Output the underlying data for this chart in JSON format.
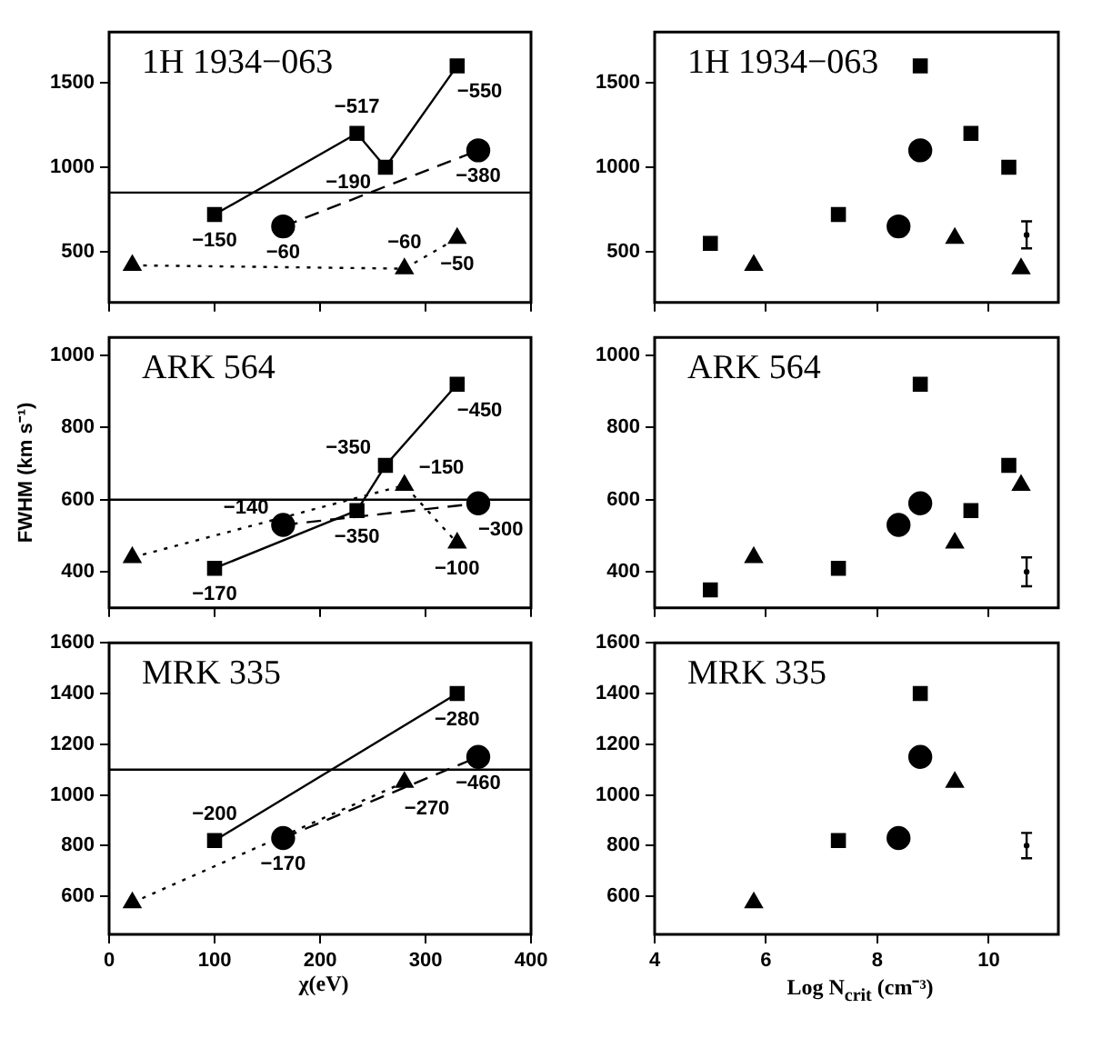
{
  "chart_data": [
    {
      "type": "line",
      "title": "1H 1934−063",
      "xlim": [
        0,
        400
      ],
      "xticks": [
        0,
        100,
        200,
        300,
        400
      ],
      "ylim": [
        200,
        1800
      ],
      "yticks": [
        500,
        1000,
        1500
      ],
      "tick_labels": "y",
      "grid": false,
      "legend": false,
      "series": [
        {
          "marker": "square",
          "line_style": "solid",
          "color": "#000000",
          "x": [
            100,
            235,
            262,
            330
          ],
          "values": [
            720,
            1200,
            1000,
            1600
          ]
        },
        {
          "marker": "circle",
          "line_style": "dashed",
          "color": "#000000",
          "x": [
            165,
            350
          ],
          "values": [
            650,
            1100
          ]
        },
        {
          "marker": "triangle",
          "line_style": "dotted",
          "color": "#000000",
          "x": [
            22,
            280,
            330
          ],
          "values": [
            420,
            400,
            580
          ]
        }
      ],
      "ref_lines": [
        {
          "axis": "y",
          "value": 850
        }
      ],
      "annotations": [
        {
          "text": "−150",
          "x": 100,
          "y": 720
        },
        {
          "text": "−517",
          "x": 235,
          "y": 1200
        },
        {
          "text": "−190",
          "x": 262,
          "y": 1000
        },
        {
          "text": "−550",
          "x": 330,
          "y": 1600
        },
        {
          "text": "−60",
          "x": 165,
          "y": 650
        },
        {
          "text": "−380",
          "x": 350,
          "y": 1100
        },
        {
          "text": "−60",
          "x": 280,
          "y": 400
        },
        {
          "text": "−50",
          "x": 330,
          "y": 580
        }
      ]
    },
    {
      "type": "scatter",
      "title": "1H 1934−063",
      "xlim": [
        4,
        11.25
      ],
      "xticks": [
        4,
        6,
        8,
        10
      ],
      "ylim": [
        200,
        1800
      ],
      "yticks": [
        500,
        1000,
        1500
      ],
      "tick_labels": "y",
      "grid": false,
      "legend": false,
      "series": [
        {
          "marker": "square",
          "color": "#000000",
          "x": [
            5.0,
            7.3,
            8.77,
            9.68,
            10.36
          ],
          "values": [
            550,
            720,
            1600,
            1200,
            1000
          ]
        },
        {
          "marker": "circle",
          "color": "#000000",
          "x": [
            8.38,
            8.77
          ],
          "values": [
            650,
            1100
          ]
        },
        {
          "marker": "triangle",
          "color": "#000000",
          "x": [
            5.78,
            9.39,
            10.58
          ],
          "values": [
            420,
            580,
            400
          ]
        },
        {
          "color": "#000000",
          "x": [
            10.68
          ],
          "values": [
            600
          ],
          "errors": [
            80
          ]
        }
      ]
    },
    {
      "type": "line",
      "title": "ARK 564",
      "ylabel": "FWHM (km s⁻¹)",
      "xlim": [
        0,
        400
      ],
      "xticks": [
        0,
        100,
        200,
        300,
        400
      ],
      "ylim": [
        300,
        1050
      ],
      "yticks": [
        400,
        600,
        800,
        1000
      ],
      "tick_labels": "y",
      "grid": false,
      "legend": false,
      "series": [
        {
          "marker": "square",
          "line_style": "solid",
          "color": "#000000",
          "x": [
            100,
            235,
            262,
            330
          ],
          "values": [
            410,
            570,
            695,
            920
          ]
        },
        {
          "marker": "circle",
          "line_style": "dashed",
          "color": "#000000",
          "x": [
            165,
            350
          ],
          "values": [
            530,
            590
          ]
        },
        {
          "marker": "triangle",
          "line_style": "dotted",
          "color": "#000000",
          "x": [
            22,
            280,
            330
          ],
          "values": [
            440,
            640,
            480
          ]
        }
      ],
      "ref_lines": [
        {
          "axis": "y",
          "value": 600
        }
      ],
      "annotations": [
        {
          "text": "−170",
          "x": 100,
          "y": 410
        },
        {
          "text": "−350",
          "x": 235,
          "y": 570
        },
        {
          "text": "−350",
          "x": 262,
          "y": 695
        },
        {
          "text": "−450",
          "x": 330,
          "y": 920
        },
        {
          "text": "−140",
          "x": 165,
          "y": 530
        },
        {
          "text": "−300",
          "x": 350,
          "y": 590
        },
        {
          "text": "−150",
          "x": 280,
          "y": 640
        },
        {
          "text": "−100",
          "x": 330,
          "y": 480
        }
      ]
    },
    {
      "type": "scatter",
      "title": "ARK 564",
      "xlim": [
        4,
        11.25
      ],
      "xticks": [
        4,
        6,
        8,
        10
      ],
      "ylim": [
        300,
        1050
      ],
      "yticks": [
        400,
        600,
        800,
        1000
      ],
      "tick_labels": "y",
      "grid": false,
      "legend": false,
      "series": [
        {
          "marker": "square",
          "color": "#000000",
          "x": [
            5.0,
            7.3,
            8.77,
            9.68,
            10.36
          ],
          "values": [
            350,
            410,
            920,
            570,
            695
          ]
        },
        {
          "marker": "circle",
          "color": "#000000",
          "x": [
            8.38,
            8.77
          ],
          "values": [
            530,
            590
          ]
        },
        {
          "marker": "triangle",
          "color": "#000000",
          "x": [
            5.78,
            9.39,
            10.58
          ],
          "values": [
            440,
            480,
            640
          ]
        },
        {
          "color": "#000000",
          "x": [
            10.68
          ],
          "values": [
            400
          ],
          "errors": [
            40
          ]
        }
      ]
    },
    {
      "type": "line",
      "title": "MRK 335",
      "xlabel": "χ(eV)",
      "xlim": [
        0,
        400
      ],
      "xticks": [
        0,
        100,
        200,
        300,
        400
      ],
      "ylim": [
        450,
        1600
      ],
      "yticks": [
        600,
        800,
        1000,
        1200,
        1400,
        1600
      ],
      "grid": false,
      "legend": false,
      "series": [
        {
          "marker": "square",
          "line_style": "solid",
          "color": "#000000",
          "x": [
            100,
            330
          ],
          "values": [
            820,
            1400
          ]
        },
        {
          "marker": "circle",
          "line_style": "dashed",
          "color": "#000000",
          "x": [
            165,
            350
          ],
          "values": [
            830,
            1150
          ]
        },
        {
          "marker": "triangle",
          "line_style": "dotted",
          "color": "#000000",
          "x": [
            22,
            280
          ],
          "values": [
            575,
            1050
          ]
        }
      ],
      "ref_lines": [
        {
          "axis": "y",
          "value": 1100
        }
      ],
      "annotations": [
        {
          "text": "−200",
          "x": 100,
          "y": 820
        },
        {
          "text": "−280",
          "x": 330,
          "y": 1400
        },
        {
          "text": "−170",
          "x": 165,
          "y": 830
        },
        {
          "text": "−460",
          "x": 350,
          "y": 1150
        },
        {
          "text": "−270",
          "x": 280,
          "y": 1050
        }
      ]
    },
    {
      "type": "scatter",
      "title": "MRK 335",
      "xlabel": "Log N$_{crit}$ (cm⁻³)",
      "xlim": [
        4,
        11.25
      ],
      "xticks": [
        4,
        6,
        8,
        10
      ],
      "ylim": [
        450,
        1600
      ],
      "yticks": [
        600,
        800,
        1000,
        1200,
        1400,
        1600
      ],
      "grid": false,
      "legend": false,
      "series": [
        {
          "marker": "square",
          "color": "#000000",
          "x": [
            7.3,
            8.77
          ],
          "values": [
            820,
            1400
          ]
        },
        {
          "marker": "circle",
          "color": "#000000",
          "x": [
            8.38,
            8.77
          ],
          "values": [
            830,
            1150
          ]
        },
        {
          "marker": "triangle",
          "color": "#000000",
          "x": [
            5.78,
            9.39
          ],
          "values": [
            575,
            1050
          ]
        },
        {
          "color": "#000000",
          "x": [
            10.68
          ],
          "values": [
            800
          ],
          "errors": [
            50
          ]
        }
      ]
    }
  ]
}
